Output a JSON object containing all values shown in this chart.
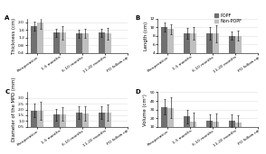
{
  "legend_labels": [
    "POPF",
    "Non-POPF"
  ],
  "colors": [
    "#707070",
    "#c0c0c0"
  ],
  "categories": [
    "Preoperative",
    "1-5 months",
    "6-10 months",
    "11-20 months",
    "PO follow-up"
  ],
  "subplots": [
    {
      "label": "A",
      "ylabel": "Thickness (cm)",
      "ylim": [
        0.4,
        2.2
      ],
      "yticks": [
        0.4,
        0.8,
        1.2,
        1.6,
        2.0
      ],
      "popf_values": [
        1.8,
        1.45,
        1.4,
        1.45,
        null
      ],
      "nonpopf_values": [
        2.0,
        1.45,
        1.42,
        1.4,
        null
      ],
      "popf_errors": [
        0.25,
        0.2,
        0.2,
        0.2,
        null
      ],
      "nonpopf_errors": [
        0.35,
        0.35,
        0.25,
        0.3,
        null
      ]
    },
    {
      "label": "B",
      "ylabel": "Length (cm)",
      "ylim": [
        4,
        12
      ],
      "yticks": [
        4,
        6,
        8,
        10,
        12
      ],
      "popf_values": [
        10.0,
        8.5,
        8.5,
        8.0,
        null
      ],
      "nonpopf_values": [
        9.5,
        8.5,
        8.5,
        8.0,
        null
      ],
      "popf_errors": [
        1.0,
        1.2,
        1.5,
        1.0,
        null
      ],
      "nonpopf_errors": [
        1.2,
        1.5,
        2.0,
        1.2,
        null
      ]
    },
    {
      "label": "C",
      "ylabel": "Diameter of the MPD (mm)",
      "ylim": [
        0.5,
        3.5
      ],
      "yticks": [
        0.5,
        1.0,
        1.5,
        2.0,
        2.5,
        3.0
      ],
      "popf_values": [
        1.9,
        1.55,
        1.75,
        1.75,
        null
      ],
      "nonpopf_values": [
        1.9,
        1.6,
        1.65,
        1.7,
        null
      ],
      "popf_errors": [
        0.6,
        0.5,
        0.55,
        0.55,
        null
      ],
      "nonpopf_errors": [
        0.8,
        0.6,
        0.6,
        0.7,
        null
      ]
    },
    {
      "label": "D",
      "ylabel": "Volume (cm³)",
      "ylim": [
        10,
        50
      ],
      "yticks": [
        10,
        20,
        30,
        40,
        50
      ],
      "popf_values": [
        33,
        22,
        17,
        17,
        null
      ],
      "nonpopf_values": [
        32,
        16,
        16,
        15,
        null
      ],
      "popf_errors": [
        9,
        8,
        7,
        7,
        null
      ],
      "nonpopf_errors": [
        12,
        10,
        9,
        8,
        null
      ]
    }
  ],
  "bar_width": 0.28,
  "tick_fontsize": 3.2,
  "label_fontsize": 3.8,
  "title_fontsize": 5.0,
  "legend_fontsize": 3.5,
  "background_color": "#ffffff",
  "grid_color": "#e0e0e0"
}
